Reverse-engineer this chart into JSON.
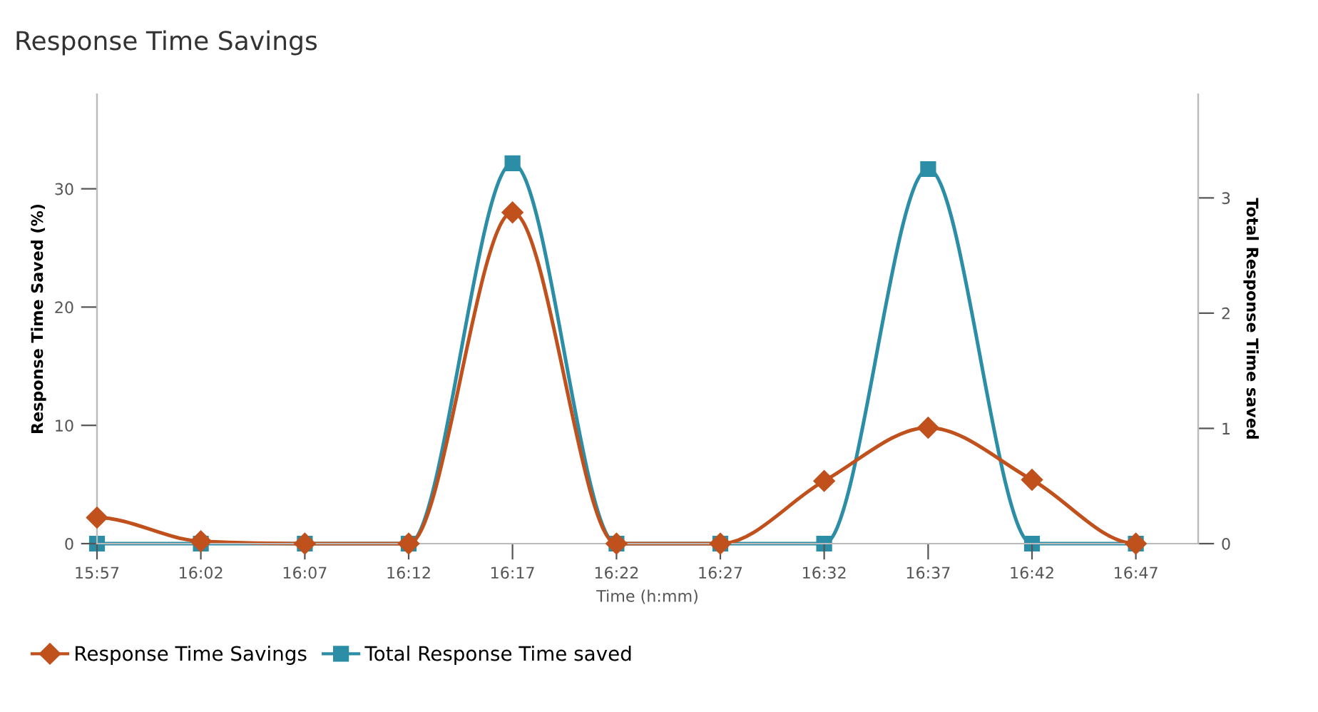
{
  "chart_data": {
    "type": "line",
    "title": "Response Time Savings",
    "xlabel": "Time (h:mm)",
    "ylabel": "Response Time Saved (%)",
    "y2label": "Total Response Time saved",
    "x": [
      15.95,
      16.0333,
      16.1167,
      16.2,
      16.2833,
      16.3667,
      16.45,
      16.5333,
      16.6167,
      16.7,
      16.7833
    ],
    "series": [
      {
        "name": "Response Time Savings",
        "color": "#c0501c",
        "marker": "diamond",
        "values": [
          2.2,
          0.2,
          0,
          0,
          28,
          0,
          0,
          5.3,
          9.8,
          5.4,
          0
        ]
      },
      {
        "name": "Total Response Time saved",
        "color": "#2b8ea6",
        "marker": "square",
        "axis": "y2",
        "values": [
          0,
          0,
          0,
          0,
          3.3,
          0,
          0,
          0,
          3.25,
          0,
          0
        ]
      }
    ],
    "xlim": [
      15.95,
      16.8333
    ],
    "xticks": [
      {
        "value": 15.95,
        "label": "15:57"
      },
      {
        "value": 16.0333,
        "label": "16:02"
      },
      {
        "value": 16.1167,
        "label": "16:07"
      },
      {
        "value": 16.2,
        "label": "16:12"
      },
      {
        "value": 16.2833,
        "label": "16:17"
      },
      {
        "value": 16.3667,
        "label": "16:22"
      },
      {
        "value": 16.45,
        "label": "16:27"
      },
      {
        "value": 16.5333,
        "label": "16:32"
      },
      {
        "value": 16.6167,
        "label": "16:37"
      },
      {
        "value": 16.7,
        "label": "16:42"
      },
      {
        "value": 16.7833,
        "label": "16:47"
      }
    ],
    "ylim": [
      0,
      38
    ],
    "yticks": [
      0,
      10,
      20,
      30
    ],
    "y2lim": [
      0,
      3.9
    ],
    "y2ticks": [
      0,
      1,
      2,
      3
    ],
    "grid": false,
    "legend": "bottom left",
    "line_style": "solid"
  }
}
